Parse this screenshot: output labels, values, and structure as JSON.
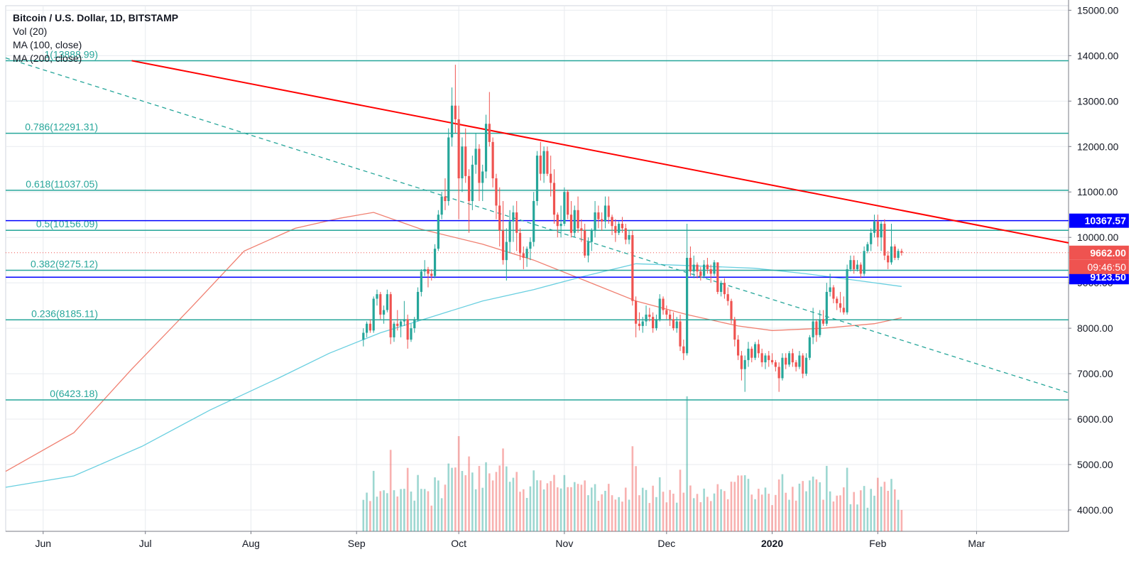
{
  "legend": {
    "title": "Bitcoin / U.S. Dollar, 1D, BITSTAMP",
    "vol": "Vol (20)",
    "ma100": "MA (100, close)",
    "ma200": "MA (200, close)"
  },
  "colors": {
    "up": "#26a69a",
    "down": "#ef5350",
    "fib": "#26a69a",
    "trend": "#ff0000",
    "blueLine": "#0000ff",
    "ma100": "#f07f70",
    "ma200": "#69cfe0",
    "grid": "#e8ebef",
    "axisText": "#131722"
  },
  "chart_data": {
    "type": "candlestick",
    "symbol": "BTC/USD",
    "interval": "1D",
    "exchange": "BITSTAMP",
    "ylim": [
      3530,
      15100
    ],
    "yticks": [
      "4000.00",
      "5000.00",
      "6000.00",
      "7000.00",
      "8000.00",
      "9000.00",
      "10000.00",
      "11000.00",
      "12000.00",
      "13000.00",
      "14000.00",
      "15000.00"
    ],
    "x_labels": [
      {
        "label": "Jun",
        "day": 31
      },
      {
        "label": "Jul",
        "day": 61
      },
      {
        "label": "Aug",
        "day": 92
      },
      {
        "label": "Sep",
        "day": 123
      },
      {
        "label": "Oct",
        "day": 153
      },
      {
        "label": "Nov",
        "day": 184
      },
      {
        "label": "Dec",
        "day": 214
      },
      {
        "label": "2020",
        "day": 245
      },
      {
        "label": "Feb",
        "day": 276
      },
      {
        "label": "Mar",
        "day": 305
      }
    ],
    "x_range_days": [
      20,
      332
    ],
    "last_day": 283,
    "fib_levels": [
      {
        "label": "1(13888.99)",
        "value": 13888.99
      },
      {
        "label": "0.786(12291.31)",
        "value": 12291.31
      },
      {
        "label": "0.618(11037.05)",
        "value": 11037.05
      },
      {
        "label": "0.5(10156.09)",
        "value": 10156.09
      },
      {
        "label": "0.382(9275.12)",
        "value": 9275.12
      },
      {
        "label": "0.236(8185.11)",
        "value": 8185.11
      },
      {
        "label": "0(6423.18)",
        "value": 6423.18
      }
    ],
    "horizontal_levels": [
      {
        "label": "10367.57",
        "value": 10367.57
      },
      {
        "label": "9123.50",
        "value": 9123.5
      }
    ],
    "current_price": {
      "label": "9662.00",
      "value": 9662.0,
      "countdown": "09:46:50"
    },
    "trendline_solid": [
      {
        "day": 57,
        "price": 13889
      },
      {
        "day": 332,
        "price": 9880
      }
    ],
    "trendline_dashed": [
      {
        "day": 20,
        "price": 13950
      },
      {
        "day": 332,
        "price": 6580
      }
    ],
    "ma100": [
      [
        20,
        4850
      ],
      [
        40,
        5700
      ],
      [
        57,
        7100
      ],
      [
        75,
        8500
      ],
      [
        90,
        9700
      ],
      [
        105,
        10200
      ],
      [
        118,
        10420
      ],
      [
        128,
        10550
      ],
      [
        142,
        10180
      ],
      [
        160,
        9850
      ],
      [
        175,
        9500
      ],
      [
        190,
        9050
      ],
      [
        205,
        8600
      ],
      [
        220,
        8300
      ],
      [
        235,
        8050
      ],
      [
        245,
        7950
      ],
      [
        260,
        8000
      ],
      [
        275,
        8100
      ],
      [
        283,
        8230
      ]
    ],
    "ma200": [
      [
        20,
        4500
      ],
      [
        40,
        4750
      ],
      [
        60,
        5400
      ],
      [
        80,
        6200
      ],
      [
        100,
        6900
      ],
      [
        115,
        7450
      ],
      [
        130,
        7900
      ],
      [
        145,
        8250
      ],
      [
        160,
        8600
      ],
      [
        175,
        8850
      ],
      [
        190,
        9150
      ],
      [
        205,
        9420
      ],
      [
        220,
        9380
      ],
      [
        240,
        9320
      ],
      [
        255,
        9200
      ],
      [
        270,
        9050
      ],
      [
        283,
        8920
      ]
    ],
    "ohlc": [
      [
        7750,
        8000,
        7600,
        7900
      ],
      [
        7900,
        8150,
        7800,
        8100
      ],
      [
        8100,
        8200,
        7900,
        7950
      ],
      [
        7950,
        8700,
        7900,
        8650
      ],
      [
        8650,
        8850,
        8500,
        8750
      ],
      [
        8750,
        8800,
        8200,
        8300
      ],
      [
        8300,
        8500,
        8100,
        8400
      ],
      [
        8400,
        8850,
        8350,
        8750
      ],
      [
        8750,
        8800,
        7650,
        7800
      ],
      [
        7800,
        8150,
        7700,
        8100
      ],
      [
        8100,
        8400,
        7950,
        8050
      ],
      [
        8050,
        8200,
        7800,
        8150
      ],
      [
        8150,
        8600,
        8050,
        8200
      ],
      [
        8200,
        8300,
        7550,
        7750
      ],
      [
        7750,
        8100,
        7700,
        8000
      ],
      [
        8000,
        8250,
        7900,
        8200
      ],
      [
        8200,
        8900,
        8150,
        8800
      ],
      [
        8800,
        9300,
        8700,
        9250
      ],
      [
        9250,
        9500,
        9150,
        9300
      ],
      [
        9300,
        9350,
        8900,
        9200
      ],
      [
        9200,
        9300,
        9050,
        9150
      ],
      [
        9150,
        9850,
        9100,
        9750
      ],
      [
        9750,
        10600,
        9700,
        10500
      ],
      [
        10500,
        11000,
        10400,
        10900
      ],
      [
        10900,
        11300,
        10600,
        10800
      ],
      [
        10800,
        12400,
        10700,
        12200
      ],
      [
        12200,
        13300,
        12000,
        12900
      ],
      [
        12900,
        13800,
        12300,
        12600
      ],
      [
        12600,
        12900,
        10400,
        11300
      ],
      [
        11300,
        12200,
        11000,
        12000
      ],
      [
        12000,
        12400,
        11200,
        11350
      ],
      [
        11350,
        11500,
        10100,
        10800
      ],
      [
        10800,
        11800,
        10600,
        11600
      ],
      [
        11600,
        12300,
        11400,
        11950
      ],
      [
        11950,
        12050,
        10800,
        11200
      ],
      [
        11200,
        11600,
        10800,
        11450
      ],
      [
        11450,
        12700,
        11300,
        12500
      ],
      [
        12500,
        13200,
        12000,
        12100
      ],
      [
        12100,
        12200,
        11100,
        11300
      ],
      [
        11300,
        11400,
        10400,
        10700
      ],
      [
        10700,
        11100,
        9800,
        10150
      ],
      [
        10150,
        10800,
        9400,
        9500
      ],
      [
        9500,
        10200,
        9050,
        9900
      ],
      [
        9900,
        10600,
        9650,
        10350
      ],
      [
        10350,
        10700,
        9900,
        10550
      ],
      [
        10550,
        10800,
        9700,
        10100
      ],
      [
        10100,
        10200,
        9500,
        9650
      ],
      [
        9650,
        9800,
        9300,
        9550
      ],
      [
        9550,
        9800,
        9350,
        9750
      ],
      [
        9750,
        10000,
        9500,
        9900
      ],
      [
        9900,
        11000,
        9800,
        10800
      ],
      [
        10800,
        11900,
        10700,
        11800
      ],
      [
        11800,
        12100,
        11250,
        11400
      ],
      [
        11400,
        12000,
        11200,
        11900
      ],
      [
        11900,
        12000,
        11350,
        11400
      ],
      [
        11400,
        11800,
        10900,
        11200
      ],
      [
        11200,
        11500,
        10300,
        10500
      ],
      [
        10500,
        10550,
        10000,
        10250
      ],
      [
        10250,
        10700,
        10000,
        10300
      ],
      [
        10300,
        11100,
        10250,
        11000
      ],
      [
        11000,
        11050,
        10400,
        10500
      ],
      [
        10500,
        10800,
        10000,
        10100
      ],
      [
        10100,
        10700,
        10000,
        10600
      ],
      [
        10600,
        10900,
        10100,
        10200
      ],
      [
        10200,
        10400,
        9900,
        10150
      ],
      [
        10150,
        10300,
        9550,
        9600
      ],
      [
        9600,
        10000,
        9450,
        9900
      ],
      [
        9900,
        10200,
        9700,
        10150
      ],
      [
        10150,
        10800,
        10000,
        10550
      ],
      [
        10550,
        10700,
        10200,
        10400
      ],
      [
        10400,
        10550,
        10150,
        10350
      ],
      [
        10350,
        10900,
        10200,
        10700
      ],
      [
        10700,
        10900,
        10300,
        10450
      ],
      [
        10450,
        10500,
        10050,
        10250
      ],
      [
        10250,
        10400,
        9900,
        10100
      ],
      [
        10100,
        10350,
        10050,
        10300
      ],
      [
        10300,
        10450,
        10100,
        10200
      ],
      [
        10200,
        10300,
        9850,
        9950
      ],
      [
        9950,
        10150,
        9850,
        10050
      ],
      [
        10050,
        10150,
        8500,
        8600
      ],
      [
        8600,
        8700,
        7800,
        8100
      ],
      [
        8100,
        8350,
        7950,
        8050
      ],
      [
        8050,
        8250,
        7900,
        8150
      ],
      [
        8150,
        8500,
        8050,
        8300
      ],
      [
        8300,
        8450,
        8150,
        8250
      ],
      [
        8250,
        8350,
        7900,
        8000
      ],
      [
        8000,
        8300,
        7950,
        8200
      ],
      [
        8200,
        8750,
        8150,
        8650
      ],
      [
        8650,
        8700,
        8300,
        8400
      ],
      [
        8400,
        8500,
        8200,
        8300
      ],
      [
        8300,
        8400,
        8050,
        8200
      ],
      [
        8200,
        8350,
        7950,
        8000
      ],
      [
        8000,
        8250,
        7900,
        8150
      ],
      [
        8150,
        8300,
        7500,
        7600
      ],
      [
        7600,
        7750,
        7300,
        7450
      ],
      [
        7450,
        10300,
        7400,
        9550
      ],
      [
        9550,
        9800,
        9150,
        9250
      ],
      [
        9250,
        9600,
        9100,
        9400
      ],
      [
        9400,
        9450,
        9100,
        9250
      ],
      [
        9250,
        9350,
        9050,
        9150
      ],
      [
        9150,
        9500,
        9100,
        9400
      ],
      [
        9400,
        9550,
        9200,
        9300
      ],
      [
        9300,
        9400,
        9000,
        9200
      ],
      [
        9200,
        9500,
        9150,
        9450
      ],
      [
        9450,
        9450,
        8750,
        8800
      ],
      [
        8800,
        9050,
        8700,
        9000
      ],
      [
        9000,
        9100,
        8650,
        8750
      ],
      [
        8750,
        8900,
        8500,
        8600
      ],
      [
        8600,
        8650,
        8100,
        8200
      ],
      [
        8200,
        8250,
        7600,
        7750
      ],
      [
        7750,
        7850,
        7300,
        7400
      ],
      [
        7400,
        7500,
        6850,
        7100
      ],
      [
        7100,
        7400,
        6600,
        7300
      ],
      [
        7300,
        7700,
        7150,
        7550
      ],
      [
        7550,
        7600,
        7250,
        7350
      ],
      [
        7350,
        7700,
        7300,
        7650
      ],
      [
        7650,
        7750,
        7350,
        7450
      ],
      [
        7450,
        7550,
        7150,
        7250
      ],
      [
        7250,
        7450,
        7100,
        7400
      ],
      [
        7400,
        7500,
        7150,
        7300
      ],
      [
        7300,
        7450,
        7200,
        7250
      ],
      [
        7250,
        7300,
        7050,
        7150
      ],
      [
        7150,
        7250,
        6600,
        6900
      ],
      [
        6900,
        7450,
        6850,
        7350
      ],
      [
        7350,
        7450,
        7100,
        7200
      ],
      [
        7200,
        7500,
        7150,
        7450
      ],
      [
        7450,
        7550,
        7150,
        7250
      ],
      [
        7250,
        7300,
        7050,
        7150
      ],
      [
        7150,
        7500,
        7100,
        7400
      ],
      [
        7400,
        7450,
        6900,
        7000
      ],
      [
        7000,
        7450,
        6950,
        7350
      ],
      [
        7350,
        7850,
        7300,
        7800
      ],
      [
        7800,
        8450,
        7650,
        8150
      ],
      [
        8150,
        8200,
        7700,
        7850
      ],
      [
        7850,
        8400,
        7800,
        8200
      ],
      [
        8200,
        8400,
        8050,
        8100
      ],
      [
        8100,
        9000,
        8050,
        8800
      ],
      [
        8800,
        9200,
        8700,
        8900
      ],
      [
        8900,
        8950,
        8550,
        8650
      ],
      [
        8650,
        8700,
        8400,
        8550
      ],
      [
        8550,
        8800,
        8350,
        8450
      ],
      [
        8450,
        8700,
        8300,
        8350
      ],
      [
        8350,
        9400,
        8300,
        9300
      ],
      [
        9300,
        9600,
        9250,
        9500
      ],
      [
        9500,
        9600,
        9200,
        9300
      ],
      [
        9300,
        9500,
        9250,
        9400
      ],
      [
        9400,
        9450,
        9100,
        9200
      ],
      [
        9200,
        9800,
        9150,
        9700
      ],
      [
        9700,
        9900,
        9650,
        9850
      ],
      [
        9850,
        10200,
        9700,
        10100
      ],
      [
        10100,
        10500,
        10000,
        10350
      ],
      [
        10350,
        10500,
        9800,
        10000
      ],
      [
        10000,
        10350,
        9700,
        10300
      ],
      [
        10300,
        10400,
        9500,
        9600
      ],
      [
        9600,
        9700,
        9300,
        9450
      ],
      [
        9450,
        10300,
        9400,
        9800
      ],
      [
        9800,
        9850,
        9500,
        9550
      ],
      [
        9550,
        9750,
        9500,
        9700
      ],
      [
        9700,
        9750,
        9600,
        9662
      ]
    ],
    "volume_note": "Volume bars in separate scale at bottom of price pane"
  }
}
